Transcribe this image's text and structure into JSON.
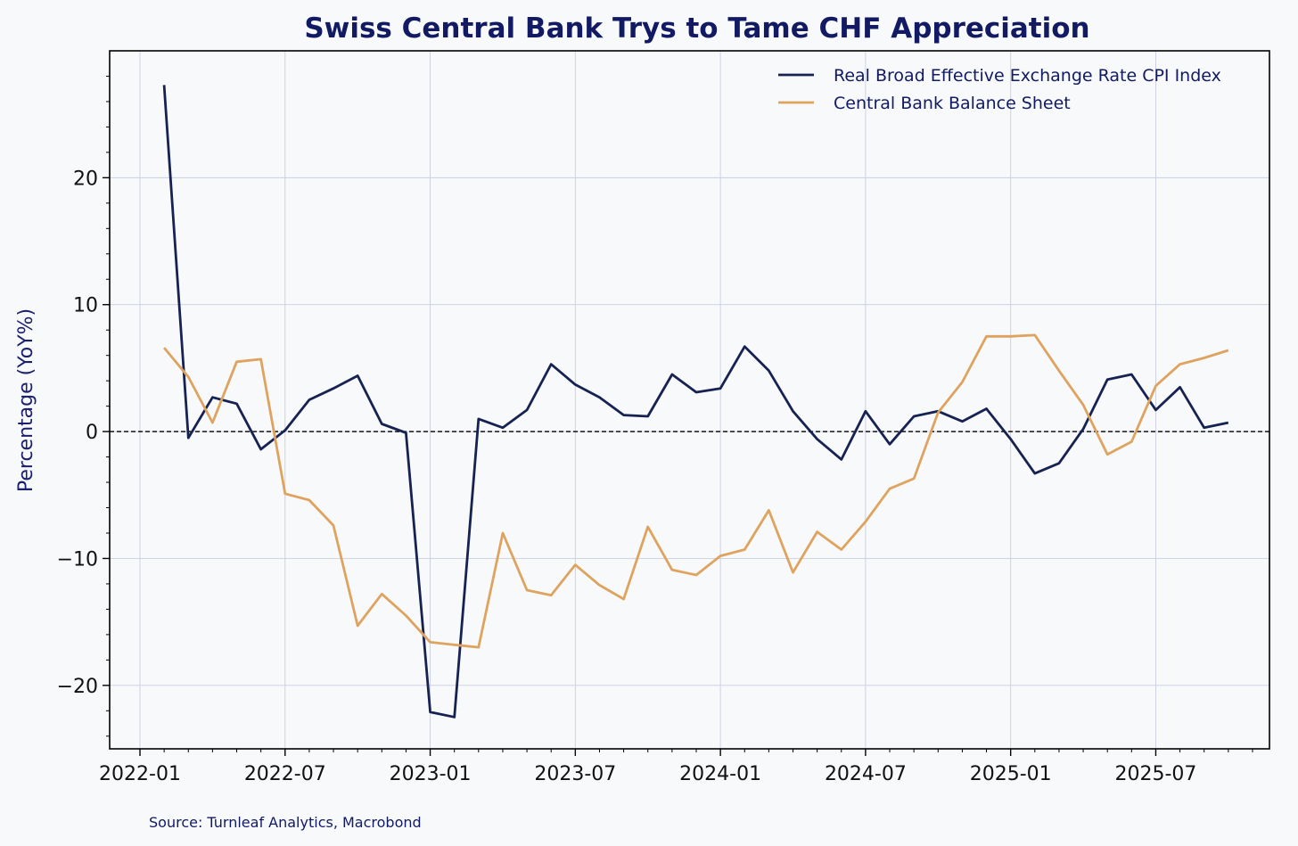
{
  "chart_data": {
    "type": "line",
    "title": "Swiss Central Bank Trys to Tame CHF Appreciation",
    "xlabel": "",
    "ylabel": "Percentage (YoY%)",
    "ylim": [
      -25,
      30
    ],
    "yticks": [
      -20,
      -10,
      0,
      10,
      20
    ],
    "ytick_labels": [
      "−20",
      "−10",
      "0",
      "10",
      "20"
    ],
    "xticks": [
      "2022-01",
      "2022-07",
      "2023-01",
      "2023-07",
      "2024-01",
      "2024-07",
      "2025-01",
      "2025-07"
    ],
    "reference_line": 0,
    "grid": true,
    "legend_position": "top-right",
    "x": [
      "2022-02",
      "2022-03",
      "2022-04",
      "2022-05",
      "2022-06",
      "2022-07",
      "2022-08",
      "2022-09",
      "2022-10",
      "2022-11",
      "2022-12",
      "2023-01",
      "2023-02",
      "2023-03",
      "2023-04",
      "2023-05",
      "2023-06",
      "2023-07",
      "2023-08",
      "2023-09",
      "2023-10",
      "2023-11",
      "2023-12",
      "2024-01",
      "2024-02",
      "2024-03",
      "2024-04",
      "2024-05",
      "2024-06",
      "2024-07",
      "2024-08",
      "2024-09",
      "2024-10",
      "2024-11",
      "2024-12",
      "2025-01",
      "2025-02",
      "2025-03",
      "2025-04",
      "2025-05",
      "2025-06",
      "2025-07",
      "2025-08",
      "2025-09",
      "2025-10"
    ],
    "series": [
      {
        "name": "Real Broad Effective Exchange Rate CPI Index",
        "color": "#162252",
        "values": [
          27.3,
          -0.5,
          2.7,
          2.2,
          -1.4,
          0.1,
          2.5,
          3.4,
          4.4,
          0.6,
          -0.1,
          -22.1,
          -22.5,
          1.0,
          0.3,
          1.7,
          5.3,
          3.7,
          2.7,
          1.3,
          1.2,
          4.5,
          3.1,
          3.4,
          6.7,
          4.8,
          1.6,
          -0.6,
          -2.2,
          1.6,
          -1.0,
          1.2,
          1.6,
          0.8,
          1.8,
          -0.6,
          -3.3,
          -2.5,
          0.2,
          4.1,
          4.5,
          1.7,
          3.5,
          0.3,
          0.7
        ]
      },
      {
        "name": "Central Bank Balance Sheet",
        "color": "#dea35f",
        "values": [
          6.6,
          4.3,
          0.7,
          5.5,
          5.7,
          -4.9,
          -5.4,
          -7.4,
          -15.3,
          -12.8,
          -14.5,
          -16.6,
          -16.8,
          -17.0,
          -8.0,
          -12.5,
          -12.9,
          -10.5,
          -12.1,
          -13.2,
          -7.5,
          -10.9,
          -11.3,
          -9.8,
          -9.3,
          -6.2,
          -11.1,
          -7.9,
          -9.3,
          -7.1,
          -4.5,
          -3.7,
          1.5,
          3.9,
          7.5,
          7.5,
          7.6,
          4.8,
          2.1,
          -1.8,
          -0.8,
          3.6,
          5.3,
          5.8,
          6.4
        ]
      }
    ]
  },
  "source": "Source: Turnleaf Analytics, Macrobond"
}
